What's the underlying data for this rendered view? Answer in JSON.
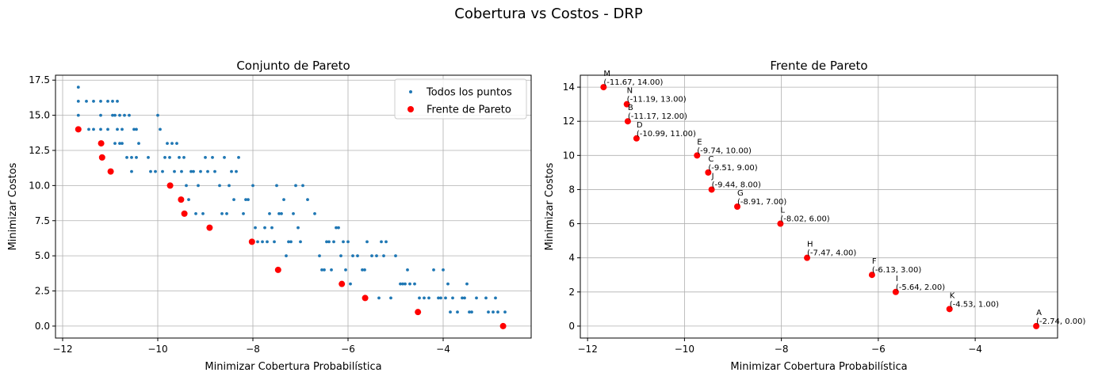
{
  "figure_title": "Cobertura vs Costos - DRP",
  "colors": {
    "scatter": "#1f77b4",
    "pareto": "#ff0000",
    "grid": "#b0b0b0"
  },
  "chart_data": [
    {
      "type": "scatter",
      "title": "Conjunto de Pareto",
      "xlabel": "Minimizar Cobertura Probabilística",
      "ylabel": "Minimizar Costos",
      "xlim": [
        -12.15,
        -2.15
      ],
      "ylim": [
        -0.85,
        17.85
      ],
      "x_ticks": [
        -12,
        -10,
        -8,
        -6,
        -4
      ],
      "y_ticks": [
        0.0,
        2.5,
        5.0,
        7.5,
        10.0,
        12.5,
        15.0,
        17.5
      ],
      "y_tick_labels": [
        "0.0",
        "2.5",
        "5.0",
        "7.5",
        "10.0",
        "12.5",
        "15.0",
        "17.5"
      ],
      "grid": true,
      "legend_position": "top-right",
      "series": [
        {
          "name": "Todos los puntos",
          "marker": "small-dot",
          "points": [
            [
              -11.67,
              17
            ],
            [
              -11.67,
              16
            ],
            [
              -11.67,
              15
            ],
            [
              -11.5,
              16
            ],
            [
              -11.45,
              14
            ],
            [
              -11.35,
              16
            ],
            [
              -11.35,
              14
            ],
            [
              -11.2,
              16
            ],
            [
              -11.2,
              15
            ],
            [
              -11.2,
              14
            ],
            [
              -11.05,
              16
            ],
            [
              -11.05,
              14
            ],
            [
              -10.95,
              16
            ],
            [
              -10.95,
              15
            ],
            [
              -10.9,
              15
            ],
            [
              -10.85,
              14
            ],
            [
              -10.85,
              16
            ],
            [
              -10.8,
              15
            ],
            [
              -10.75,
              14
            ],
            [
              -10.75,
              13
            ],
            [
              -10.7,
              15
            ],
            [
              -10.65,
              12
            ],
            [
              -10.6,
              15
            ],
            [
              -10.55,
              12
            ],
            [
              -10.5,
              14
            ],
            [
              -10.45,
              14
            ],
            [
              -10.4,
              13
            ],
            [
              -10.9,
              13
            ],
            [
              -10.8,
              13
            ],
            [
              -10.55,
              11
            ],
            [
              -10.45,
              12
            ],
            [
              -10.2,
              12
            ],
            [
              -10.15,
              11
            ],
            [
              -10.05,
              11
            ],
            [
              -10.0,
              15
            ],
            [
              -9.95,
              14
            ],
            [
              -9.9,
              11
            ],
            [
              -9.85,
              12
            ],
            [
              -9.8,
              13
            ],
            [
              -9.75,
              12
            ],
            [
              -9.7,
              13
            ],
            [
              -9.65,
              11
            ],
            [
              -9.6,
              13
            ],
            [
              -9.55,
              12
            ],
            [
              -9.5,
              11
            ],
            [
              -9.45,
              12
            ],
            [
              -9.4,
              10
            ],
            [
              -9.35,
              9
            ],
            [
              -9.3,
              11
            ],
            [
              -9.25,
              11
            ],
            [
              -9.2,
              8
            ],
            [
              -9.15,
              10
            ],
            [
              -9.1,
              11
            ],
            [
              -9.05,
              8
            ],
            [
              -9.0,
              12
            ],
            [
              -8.95,
              11
            ],
            [
              -8.85,
              12
            ],
            [
              -8.8,
              11
            ],
            [
              -8.7,
              10
            ],
            [
              -8.65,
              8
            ],
            [
              -8.6,
              12
            ],
            [
              -8.55,
              8
            ],
            [
              -8.5,
              10
            ],
            [
              -8.45,
              11
            ],
            [
              -8.4,
              9
            ],
            [
              -8.35,
              11
            ],
            [
              -8.3,
              12
            ],
            [
              -8.2,
              8
            ],
            [
              -8.15,
              9
            ],
            [
              -8.1,
              9
            ],
            [
              -8.0,
              10
            ],
            [
              -7.95,
              7
            ],
            [
              -7.9,
              6
            ],
            [
              -7.8,
              6
            ],
            [
              -7.75,
              7
            ],
            [
              -7.7,
              6
            ],
            [
              -7.65,
              8
            ],
            [
              -7.6,
              7
            ],
            [
              -7.55,
              6
            ],
            [
              -7.5,
              10
            ],
            [
              -7.45,
              8
            ],
            [
              -7.4,
              8
            ],
            [
              -7.35,
              9
            ],
            [
              -7.3,
              5
            ],
            [
              -7.25,
              6
            ],
            [
              -7.2,
              6
            ],
            [
              -7.15,
              8
            ],
            [
              -7.1,
              10
            ],
            [
              -7.05,
              7
            ],
            [
              -7.0,
              6
            ],
            [
              -6.95,
              10
            ],
            [
              -6.85,
              9
            ],
            [
              -6.7,
              8
            ],
            [
              -6.6,
              5
            ],
            [
              -6.55,
              4
            ],
            [
              -6.5,
              4
            ],
            [
              -6.45,
              6
            ],
            [
              -6.4,
              6
            ],
            [
              -6.35,
              4
            ],
            [
              -6.3,
              6
            ],
            [
              -6.25,
              7
            ],
            [
              -6.2,
              7
            ],
            [
              -6.15,
              5
            ],
            [
              -6.1,
              6
            ],
            [
              -6.05,
              4
            ],
            [
              -6.0,
              6
            ],
            [
              -5.95,
              3
            ],
            [
              -5.9,
              5
            ],
            [
              -5.8,
              5
            ],
            [
              -5.7,
              4
            ],
            [
              -5.65,
              4
            ],
            [
              -5.6,
              6
            ],
            [
              -5.5,
              5
            ],
            [
              -5.4,
              5
            ],
            [
              -5.35,
              2
            ],
            [
              -5.3,
              6
            ],
            [
              -5.25,
              5
            ],
            [
              -5.2,
              6
            ],
            [
              -5.1,
              2
            ],
            [
              -5.0,
              5
            ],
            [
              -4.9,
              3
            ],
            [
              -4.85,
              3
            ],
            [
              -4.8,
              3
            ],
            [
              -4.75,
              4
            ],
            [
              -4.7,
              3
            ],
            [
              -4.6,
              3
            ],
            [
              -4.5,
              2
            ],
            [
              -4.4,
              2
            ],
            [
              -4.3,
              2
            ],
            [
              -4.2,
              4
            ],
            [
              -4.1,
              2
            ],
            [
              -4.05,
              2
            ],
            [
              -4.0,
              4
            ],
            [
              -3.95,
              2
            ],
            [
              -3.9,
              3
            ],
            [
              -3.85,
              1
            ],
            [
              -3.8,
              2
            ],
            [
              -3.7,
              1
            ],
            [
              -3.6,
              2
            ],
            [
              -3.5,
              3
            ],
            [
              -3.45,
              1
            ],
            [
              -3.4,
              1
            ],
            [
              -3.3,
              2
            ],
            [
              -3.1,
              2
            ],
            [
              -3.05,
              1
            ],
            [
              -2.95,
              1
            ],
            [
              -2.9,
              2
            ],
            [
              -2.85,
              1
            ],
            [
              -2.7,
              1
            ],
            [
              -3.55,
              2
            ]
          ]
        },
        {
          "name": "Frente de Pareto",
          "marker": "dot",
          "points": [
            [
              -11.67,
              14
            ],
            [
              -11.19,
              13
            ],
            [
              -11.17,
              12
            ],
            [
              -10.99,
              11
            ],
            [
              -9.74,
              10
            ],
            [
              -9.51,
              9
            ],
            [
              -9.44,
              8
            ],
            [
              -8.91,
              7
            ],
            [
              -8.02,
              6
            ],
            [
              -7.47,
              4
            ],
            [
              -6.13,
              3
            ],
            [
              -5.64,
              2
            ],
            [
              -4.53,
              1
            ],
            [
              -2.74,
              0
            ]
          ]
        }
      ]
    },
    {
      "type": "scatter",
      "title": "Frente de Pareto",
      "xlabel": "Minimizar Cobertura Probabilística",
      "ylabel": "Minimizar Costos",
      "xlim": [
        -12.15,
        -2.3
      ],
      "ylim": [
        -0.7,
        14.7
      ],
      "x_ticks": [
        -12,
        -10,
        -8,
        -6,
        -4
      ],
      "y_ticks": [
        0,
        2,
        4,
        6,
        8,
        10,
        12,
        14
      ],
      "y_tick_labels": [
        "0",
        "2",
        "4",
        "6",
        "8",
        "10",
        "12",
        "14"
      ],
      "grid": true,
      "series": [
        {
          "marker": "dot",
          "points": [
            {
              "label": "M",
              "x": -11.67,
              "y": 14,
              "text": "(-11.67, 14.00)"
            },
            {
              "label": "N",
              "x": -11.19,
              "y": 13,
              "text": "(-11.19, 13.00)"
            },
            {
              "label": "B",
              "x": -11.17,
              "y": 12,
              "text": "(-11.17, 12.00)"
            },
            {
              "label": "D",
              "x": -10.99,
              "y": 11,
              "text": "(-10.99, 11.00)"
            },
            {
              "label": "E",
              "x": -9.74,
              "y": 10,
              "text": "(-9.74, 10.00)"
            },
            {
              "label": "C",
              "x": -9.51,
              "y": 9,
              "text": "(-9.51, 9.00)"
            },
            {
              "label": "J",
              "x": -9.44,
              "y": 8,
              "text": "(-9.44, 8.00)"
            },
            {
              "label": "G",
              "x": -8.91,
              "y": 7,
              "text": "(-8.91, 7.00)"
            },
            {
              "label": "L",
              "x": -8.02,
              "y": 6,
              "text": "(-8.02, 6.00)"
            },
            {
              "label": "H",
              "x": -7.47,
              "y": 4,
              "text": "(-7.47, 4.00)"
            },
            {
              "label": "F",
              "x": -6.13,
              "y": 3,
              "text": "(-6.13, 3.00)"
            },
            {
              "label": "I",
              "x": -5.64,
              "y": 2,
              "text": "(-5.64, 2.00)"
            },
            {
              "label": "K",
              "x": -4.53,
              "y": 1,
              "text": "(-4.53, 1.00)"
            },
            {
              "label": "A",
              "x": -2.74,
              "y": 0,
              "text": "(-2.74, 0.00)"
            }
          ]
        }
      ]
    }
  ]
}
